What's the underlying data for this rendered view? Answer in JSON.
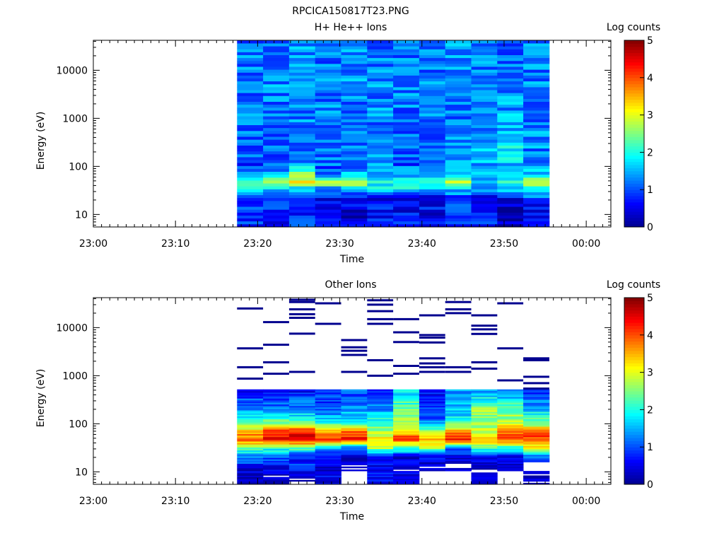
{
  "figure_title": "RPCICA150817T23.PNG",
  "colormap": [
    "#00008f",
    "#0000ff",
    "#0080ff",
    "#00ffff",
    "#80ff80",
    "#ffff00",
    "#ff8000",
    "#ff0000",
    "#800000"
  ],
  "chart_data": [
    {
      "type": "heatmap",
      "title": "H+ He++ Ions",
      "xlabel": "Time",
      "ylabel": "Energy (eV)",
      "y_scale": "log",
      "xlim": [
        "23:00",
        "00:03"
      ],
      "x_ticks": [
        "23:00",
        "23:10",
        "23:20",
        "23:30",
        "23:40",
        "23:50",
        "00:00"
      ],
      "y_ticks": [
        "10",
        "100",
        "1000",
        "10000"
      ],
      "ylim_eV": [
        5.5,
        42000
      ],
      "colorbar": {
        "label": "Log counts",
        "range": [
          0,
          5
        ],
        "ticks": [
          "0",
          "1",
          "2",
          "3",
          "4",
          "5"
        ]
      },
      "data_time_start": "23:17:30",
      "data_time_end": "23:55:30",
      "time_bins": 12,
      "energy_bins_coarse": [
        {
          "energy_eV": 8,
          "log_counts": [
            0.9,
            0.7,
            0.9,
            0.6,
            0.4,
            0.7,
            0.6,
            0.5,
            0.8,
            0.7,
            0.4,
            0.5
          ]
        },
        {
          "energy_eV": 13,
          "log_counts": [
            0.9,
            0.8,
            0.7,
            0.6,
            0.5,
            0.7,
            0.6,
            0.6,
            0.8,
            0.6,
            0.2,
            0.5
          ]
        },
        {
          "energy_eV": 21,
          "log_counts": [
            1.0,
            0.9,
            0.8,
            0.5,
            0.3,
            0.2,
            0.6,
            0.4,
            0.9,
            0.5,
            0.6,
            0.7
          ]
        },
        {
          "energy_eV": 32,
          "log_counts": [
            2.2,
            1.4,
            1.6,
            1.0,
            1.4,
            1.6,
            1.7,
            1.4,
            1.6,
            1.3,
            1.8,
            2.2
          ]
        },
        {
          "energy_eV": 48,
          "log_counts": [
            2.0,
            2.8,
            3.0,
            2.9,
            3.0,
            1.9,
            1.8,
            2.0,
            2.8,
            1.5,
            1.9,
            2.6
          ]
        },
        {
          "energy_eV": 72,
          "log_counts": [
            1.2,
            1.6,
            2.4,
            1.0,
            1.5,
            1.6,
            1.4,
            1.6,
            1.5,
            1.8,
            2.1,
            1.7
          ]
        },
        {
          "energy_eV": 110,
          "log_counts": [
            0.9,
            1.1,
            1.3,
            1.1,
            1.2,
            1.3,
            1.0,
            1.2,
            1.3,
            1.4,
            1.5,
            1.4
          ]
        },
        {
          "energy_eV": 200,
          "log_counts": [
            1.1,
            1.2,
            1.1,
            1.2,
            1.1,
            1.3,
            1.2,
            1.1,
            1.3,
            1.6,
            1.8,
            1.3
          ]
        },
        {
          "energy_eV": 450,
          "log_counts": [
            1.2,
            1.2,
            1.2,
            1.1,
            1.3,
            1.2,
            1.2,
            1.2,
            1.3,
            1.4,
            1.5,
            1.3
          ]
        },
        {
          "energy_eV": 1500,
          "log_counts": [
            1.2,
            1.2,
            1.3,
            1.2,
            1.2,
            1.3,
            1.2,
            1.3,
            1.2,
            1.3,
            1.4,
            1.2
          ]
        },
        {
          "energy_eV": 6000,
          "log_counts": [
            1.2,
            1.3,
            1.3,
            1.2,
            1.3,
            1.3,
            1.3,
            1.2,
            1.3,
            1.3,
            1.3,
            1.3
          ]
        },
        {
          "energy_eV": 25000,
          "log_counts": [
            1.2,
            1.2,
            1.3,
            1.2,
            1.3,
            1.2,
            1.2,
            1.2,
            1.3,
            1.2,
            1.2,
            1.2
          ]
        }
      ]
    },
    {
      "type": "heatmap",
      "title": "Other Ions",
      "xlabel": "Time",
      "ylabel": "Energy (eV)",
      "y_scale": "log",
      "xlim": [
        "23:00",
        "00:03"
      ],
      "x_ticks": [
        "23:00",
        "23:10",
        "23:20",
        "23:30",
        "23:40",
        "23:50",
        "00:00"
      ],
      "y_ticks": [
        "10",
        "100",
        "1000",
        "10000"
      ],
      "ylim_eV": [
        5.5,
        42000
      ],
      "colorbar": {
        "label": "Log counts",
        "range": [
          0,
          5
        ],
        "ticks": [
          "0",
          "1",
          "2",
          "3",
          "4",
          "5"
        ]
      },
      "data_time_start": "23:17:30",
      "data_time_end": "23:55:30",
      "time_bins": 12,
      "energy_bins_coarse": [
        {
          "energy_eV": 8,
          "log_counts": [
            0.2,
            0.2,
            0.2,
            0.5,
            null,
            0.7,
            0.6,
            null,
            null,
            0.2,
            null,
            0.2
          ]
        },
        {
          "energy_eV": 13,
          "log_counts": [
            0.7,
            0.6,
            0.8,
            0.3,
            0.2,
            0.4,
            0.3,
            0.3,
            0.2,
            0.4,
            0.5,
            null
          ]
        },
        {
          "energy_eV": 21,
          "log_counts": [
            1.2,
            1.1,
            0.8,
            0.6,
            0.4,
            0.7,
            0.5,
            0.6,
            0.4,
            0.7,
            0.6,
            1.0
          ]
        },
        {
          "energy_eV": 32,
          "log_counts": [
            2.6,
            2.2,
            2.4,
            1.6,
            1.3,
            2.8,
            2.3,
            2.7,
            1.4,
            2.2,
            2.1,
            3.0
          ]
        },
        {
          "energy_eV": 48,
          "log_counts": [
            4.1,
            4.4,
            4.6,
            4.2,
            4.4,
            3.3,
            4.0,
            3.5,
            4.4,
            3.5,
            4.1,
            4.3
          ]
        },
        {
          "energy_eV": 72,
          "log_counts": [
            3.2,
            4.0,
            4.2,
            3.2,
            3.9,
            2.6,
            3.4,
            2.4,
            3.6,
            2.8,
            4.0,
            3.5
          ]
        },
        {
          "energy_eV": 110,
          "log_counts": [
            2.4,
            2.4,
            2.3,
            1.8,
            1.9,
            2.2,
            2.8,
            1.2,
            2.0,
            2.6,
            2.8,
            2.5
          ]
        },
        {
          "energy_eV": 200,
          "log_counts": [
            1.4,
            1.2,
            1.3,
            1.1,
            1.4,
            1.4,
            2.4,
            1.0,
            1.6,
            2.7,
            2.4,
            1.6
          ]
        },
        {
          "energy_eV": 450,
          "log_counts": [
            0.7,
            0.8,
            0.7,
            0.8,
            1.0,
            0.6,
            1.7,
            0.6,
            1.3,
            1.5,
            1.3,
            0.8
          ]
        }
      ],
      "sparse_high_energy_lines_eV": [
        [
          25000,
          3700,
          1500,
          870
        ],
        [
          13000,
          4400,
          1900,
          1100
        ],
        [
          38000,
          34000,
          24000,
          19000,
          16000,
          7500,
          1200
        ],
        [
          32000,
          12000
        ],
        [
          5500,
          3900,
          3300,
          2700,
          1200
        ],
        [
          37000,
          30000,
          22000,
          15000,
          12000,
          2100,
          1000
        ],
        [
          15000,
          8000,
          5000,
          1600,
          1100
        ],
        [
          18000,
          7000,
          6200,
          4900,
          2300,
          1800,
          1500,
          1200
        ],
        [
          34000,
          24000,
          20000,
          1500,
          1200
        ],
        [
          18000,
          11000,
          9200,
          7400,
          1900,
          1400
        ],
        [
          32000,
          3700,
          800
        ],
        [
          2300,
          2100,
          950,
          700,
          540
        ]
      ]
    }
  ]
}
